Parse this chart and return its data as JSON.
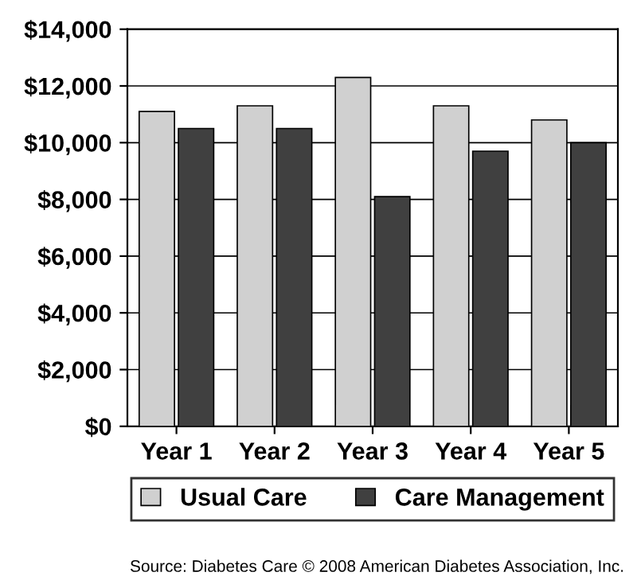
{
  "chart_data": {
    "type": "bar",
    "categories": [
      "Year 1",
      "Year 2",
      "Year 3",
      "Year 4",
      "Year 5"
    ],
    "series": [
      {
        "name": "Usual Care",
        "color": "#d0d0d0",
        "values": [
          11100,
          11300,
          12300,
          11300,
          10800
        ]
      },
      {
        "name": "Care Management",
        "color": "#404040",
        "values": [
          10500,
          10500,
          8100,
          9700,
          10000
        ]
      }
    ],
    "ylim": [
      0,
      14000
    ],
    "yticks": [
      {
        "value": 0,
        "label": "$0"
      },
      {
        "value": 2000,
        "label": "$2,000"
      },
      {
        "value": 4000,
        "label": "$4,000"
      },
      {
        "value": 6000,
        "label": "$6,000"
      },
      {
        "value": 8000,
        "label": "$8,000"
      },
      {
        "value": 10000,
        "label": "$10,000"
      },
      {
        "value": 12000,
        "label": "$12,000"
      },
      {
        "value": 14000,
        "label": "$14,000"
      }
    ],
    "grid": "y",
    "legend": "bottom",
    "annotations": [
      "Source: Diabetes Care © 2008 American Diabetes Association, Inc."
    ]
  }
}
